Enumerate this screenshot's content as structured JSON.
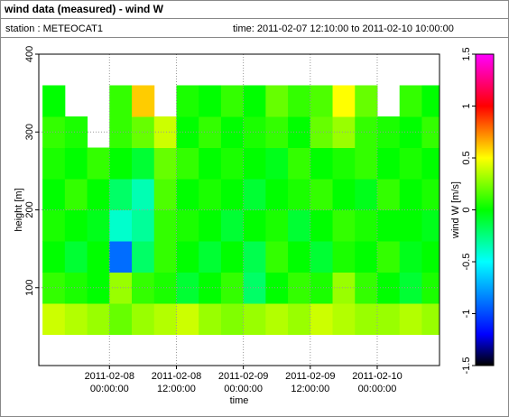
{
  "header": {
    "title": "wind data (measured) - wind W",
    "station": "station : METEOCAT1",
    "time_range": "time: 2011-02-07 12:10:00 to 2011-02-10 10:00:00"
  },
  "chart_data": {
    "type": "heatmap",
    "xlabel": "time",
    "ylabel": "height [m]",
    "colorbar_label": "wind W [m/s]",
    "xlim": [
      "2011-02-07 11:20:00",
      "2011-02-10 11:10:00"
    ],
    "xticks": [
      "2011-02-08 00:00:00",
      "2011-02-08 12:00:00",
      "2011-02-09 00:00:00",
      "2011-02-09 12:00:00",
      "2011-02-10 00:00:00"
    ],
    "ylim": [
      0,
      400
    ],
    "yticks": [
      100,
      200,
      300,
      400
    ],
    "grid": true,
    "xbins": [
      "2011-02-07 12:00:00",
      "2011-02-07 16:00:00",
      "2011-02-07 20:00:00",
      "2011-02-08 00:00:00",
      "2011-02-08 04:00:00",
      "2011-02-08 08:00:00",
      "2011-02-08 12:00:00",
      "2011-02-08 16:00:00",
      "2011-02-08 20:00:00",
      "2011-02-09 00:00:00",
      "2011-02-09 04:00:00",
      "2011-02-09 08:00:00",
      "2011-02-09 12:00:00",
      "2011-02-09 16:00:00",
      "2011-02-09 20:00:00",
      "2011-02-10 00:00:00",
      "2011-02-10 04:00:00",
      "2011-02-10 08:00:00",
      "2011-02-10 12:00:00"
    ],
    "ybins": [
      40,
      80,
      120,
      160,
      200,
      240,
      280,
      320,
      360
    ],
    "z": [
      [
        0.4,
        0.35,
        0.3,
        0.2,
        0.3,
        0.35,
        0.4,
        0.3,
        0.25,
        0.3,
        0.35,
        0.3,
        0.4,
        0.35,
        0.3,
        0.3,
        0.35,
        0.3
      ],
      [
        0.1,
        0.05,
        0.0,
        0.3,
        0.1,
        0.05,
        -0.1,
        0.0,
        0.1,
        -0.2,
        0.0,
        0.1,
        0.05,
        0.3,
        0.1,
        0.0,
        -0.1,
        0.05
      ],
      [
        0.0,
        -0.1,
        0.0,
        -0.9,
        -0.2,
        0.1,
        0.0,
        -0.1,
        0.0,
        -0.15,
        0.1,
        0.0,
        -0.1,
        0.05,
        0.0,
        0.1,
        -0.05,
        0.0
      ],
      [
        0.05,
        0.0,
        -0.05,
        -0.4,
        -0.3,
        0.1,
        0.05,
        0.0,
        -0.1,
        0.0,
        0.05,
        -0.1,
        0.0,
        0.1,
        0.05,
        0.0,
        0.0,
        -0.05
      ],
      [
        0.0,
        0.1,
        0.0,
        -0.2,
        -0.35,
        0.15,
        0.0,
        0.05,
        0.0,
        -0.1,
        0.0,
        0.05,
        0.1,
        0.0,
        -0.05,
        0.1,
        0.0,
        0.05
      ],
      [
        0.05,
        0.0,
        0.1,
        0.0,
        -0.1,
        0.2,
        0.1,
        0.0,
        0.05,
        0.0,
        -0.05,
        0.1,
        0.0,
        0.05,
        0.1,
        0.0,
        0.05,
        0.0
      ],
      [
        0.1,
        0.05,
        null,
        0.1,
        0.2,
        0.4,
        0.0,
        0.1,
        0.0,
        0.05,
        0.1,
        0.0,
        0.2,
        0.3,
        0.1,
        0.05,
        0.0,
        0.1
      ],
      [
        0.0,
        null,
        null,
        0.1,
        0.6,
        null,
        0.05,
        0.0,
        0.1,
        0.0,
        0.2,
        0.1,
        0.15,
        0.5,
        0.2,
        null,
        0.1,
        0.0
      ]
    ],
    "clim": [
      -1.5,
      1.5
    ],
    "cticks": [
      -1.5,
      -1,
      -0.5,
      0,
      0.5,
      1,
      1.5
    ],
    "colorscale": [
      [
        -1.5,
        "#000000"
      ],
      [
        -1.2,
        "#0000ff"
      ],
      [
        -0.5,
        "#00ffff"
      ],
      [
        0,
        "#00ff00"
      ],
      [
        0.5,
        "#ffff00"
      ],
      [
        1,
        "#ff0000"
      ],
      [
        1.5,
        "#ff00ff"
      ]
    ]
  }
}
